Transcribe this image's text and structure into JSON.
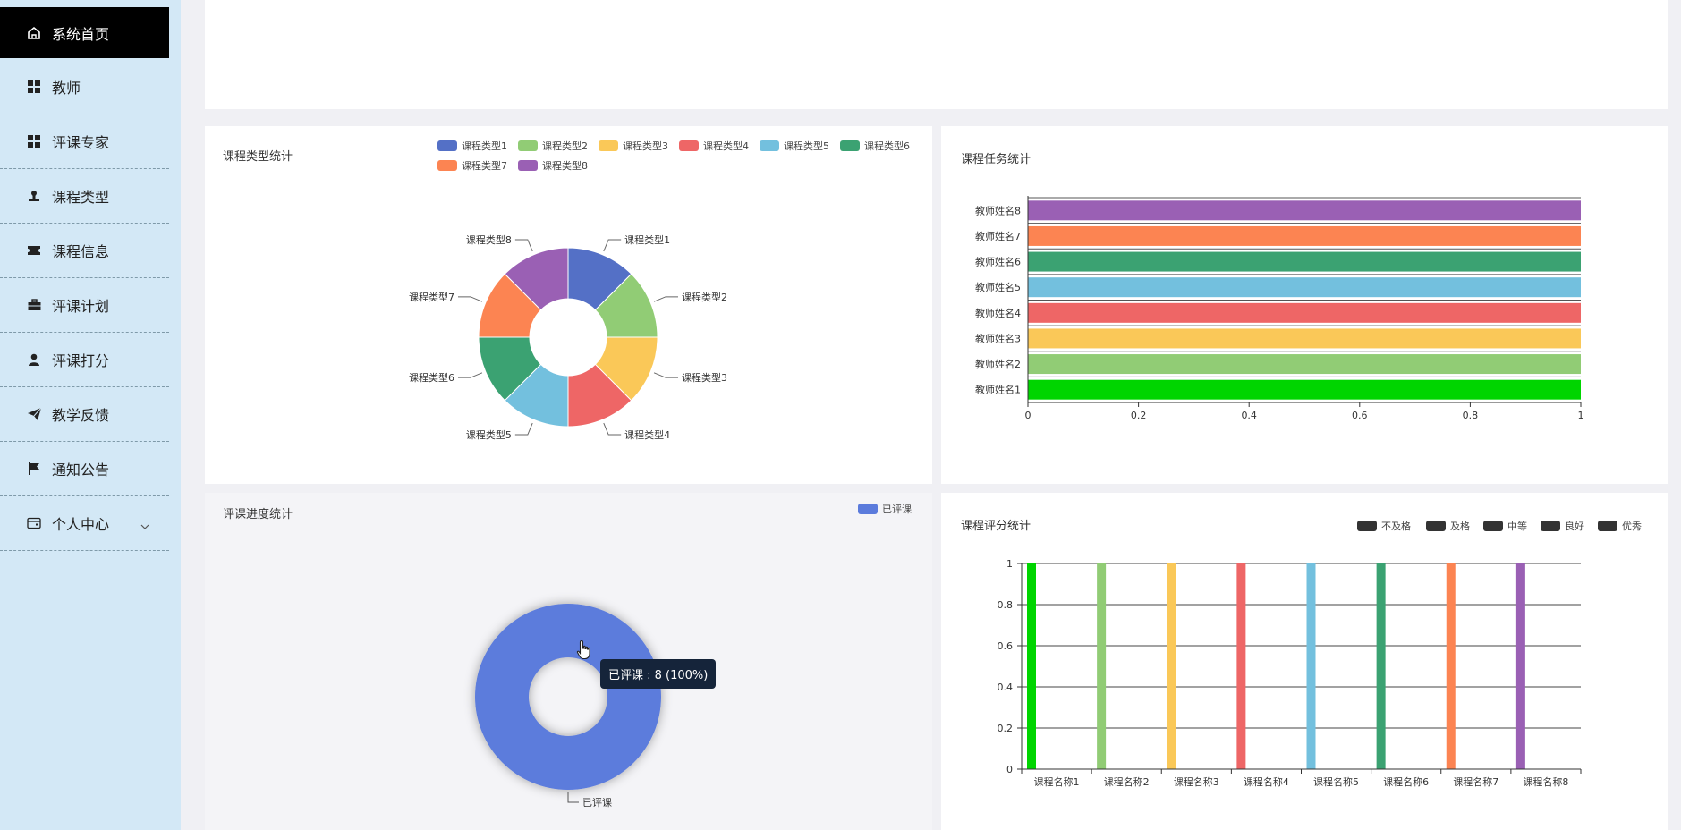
{
  "sidebar": {
    "items": [
      {
        "label": "系统首页",
        "icon": "home-icon"
      },
      {
        "label": "教师",
        "icon": "grid-icon"
      },
      {
        "label": "评课专家",
        "icon": "grid-icon"
      },
      {
        "label": "课程类型",
        "icon": "stamp-icon"
      },
      {
        "label": "课程信息",
        "icon": "ticket-icon"
      },
      {
        "label": "评课计划",
        "icon": "briefcase-icon"
      },
      {
        "label": "评课打分",
        "icon": "user-icon"
      },
      {
        "label": "教学反馈",
        "icon": "send-icon"
      },
      {
        "label": "通知公告",
        "icon": "flag-icon"
      },
      {
        "label": "个人中心",
        "icon": "wallet-icon"
      }
    ]
  },
  "colors": {
    "palette": [
      "#5470c6",
      "#91cc75",
      "#fac858",
      "#ee6666",
      "#73c0de",
      "#3ba272",
      "#fc8452",
      "#9a60b4"
    ],
    "bar_first": "#00d500",
    "progress": "#5b7bdc",
    "sidebar_bg": "#d3e8f6"
  },
  "panels": {
    "course_type": {
      "title": "课程类型统计",
      "legend": [
        "课程类型1",
        "课程类型2",
        "课程类型3",
        "课程类型4",
        "课程类型5",
        "课程类型6",
        "课程类型7",
        "课程类型8"
      ]
    },
    "task": {
      "title": "课程任务统计"
    },
    "progress": {
      "title": "评课进度统计",
      "legend": "已评课",
      "slice_label": "已评课"
    },
    "score": {
      "title": "课程评分统计",
      "legend": [
        "不及格",
        "及格",
        "中等",
        "良好",
        "优秀"
      ]
    }
  },
  "tooltip": {
    "text": "已评课 : 8 (100%)"
  },
  "chart_data": [
    {
      "type": "pie",
      "subtype": "donut",
      "title": "课程类型统计",
      "labels": [
        "课程类型1",
        "课程类型2",
        "课程类型3",
        "课程类型4",
        "课程类型5",
        "课程类型6",
        "课程类型7",
        "课程类型8"
      ],
      "values": [
        1,
        1,
        1,
        1,
        1,
        1,
        1,
        1
      ]
    },
    {
      "type": "bar",
      "orientation": "horizontal",
      "title": "课程任务统计",
      "categories": [
        "教师姓名1",
        "教师姓名2",
        "教师姓名3",
        "教师姓名4",
        "教师姓名5",
        "教师姓名6",
        "教师姓名7",
        "教师姓名8"
      ],
      "values": [
        1,
        1,
        1,
        1,
        1,
        1,
        1,
        1
      ],
      "xlim": [
        0,
        1
      ],
      "xticks": [
        "0",
        "0.2",
        "0.4",
        "0.6",
        "0.8",
        "1"
      ]
    },
    {
      "type": "pie",
      "subtype": "donut",
      "title": "评课进度统计",
      "labels": [
        "已评课"
      ],
      "values": [
        8
      ],
      "percent": [
        100
      ]
    },
    {
      "type": "bar",
      "title": "课程评分统计",
      "categories": [
        "课程名称1",
        "课程名称2",
        "课程名称3",
        "课程名称4",
        "课程名称5",
        "课程名称6",
        "课程名称7",
        "课程名称8"
      ],
      "values": [
        1,
        1,
        1,
        1,
        1,
        1,
        1,
        1
      ],
      "series_legend": [
        "不及格",
        "及格",
        "中等",
        "良好",
        "优秀"
      ],
      "ylim": [
        0,
        1
      ],
      "yticks": [
        "0",
        "0.2",
        "0.4",
        "0.6",
        "0.8",
        "1"
      ]
    }
  ]
}
